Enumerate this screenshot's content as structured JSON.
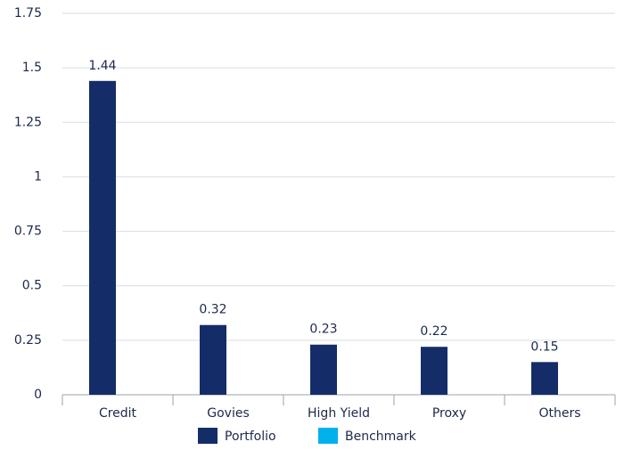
{
  "chart_data": {
    "type": "bar",
    "categories": [
      "Credit",
      "Govies",
      "High Yield",
      "Proxy",
      "Others"
    ],
    "series": [
      {
        "name": "Portfolio",
        "color": "#142d69",
        "values": [
          1.44,
          0.32,
          0.23,
          0.22,
          0.15
        ]
      },
      {
        "name": "Benchmark",
        "color": "#00b1eb",
        "values": [
          null,
          null,
          null,
          null,
          null
        ]
      }
    ],
    "ylim": [
      0,
      1.75
    ],
    "yticks": [
      0,
      0.25,
      0.5,
      0.75,
      1,
      1.25,
      1.5,
      1.75
    ],
    "grid": true,
    "legend": "bottom"
  }
}
